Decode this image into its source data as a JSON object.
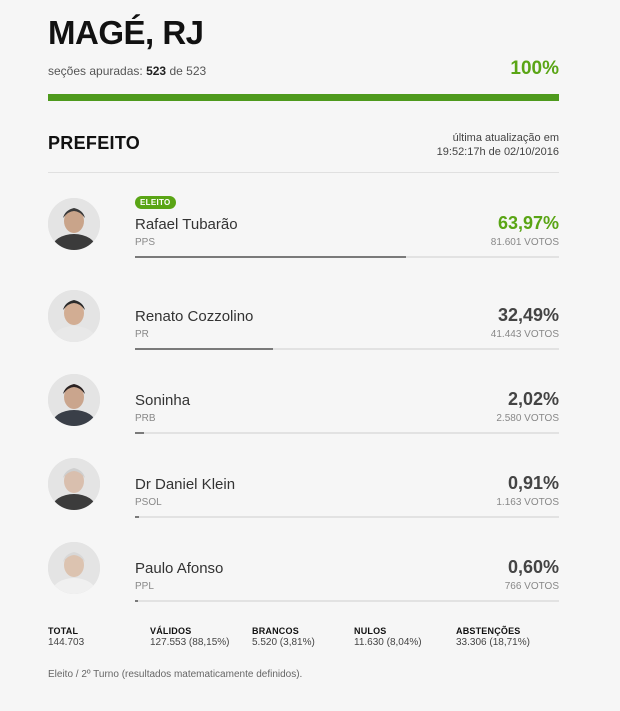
{
  "header": {
    "city": "MAGÉ, RJ",
    "sections_label": "seções apuradas:",
    "sections_counted": "523",
    "sections_of": "de",
    "sections_total": "523",
    "percent_counted": "100%",
    "progress_fraction": 1.0,
    "accent_color": "#5aa515"
  },
  "race": {
    "office": "PREFEITO",
    "updated_line1": "última atualização em",
    "updated_line2": "19:52:17h de 02/10/2016"
  },
  "candidates": [
    {
      "name": "Rafael Tubarão",
      "party": "PPS",
      "percent": "63,97%",
      "votes": "81.601 VOTOS",
      "share": 0.6397,
      "elected": true,
      "badge": "ELEITO",
      "avatar": "candidate-photo"
    },
    {
      "name": "Renato Cozzolino",
      "party": "PR",
      "percent": "32,49%",
      "votes": "41.443 VOTOS",
      "share": 0.3249,
      "elected": false,
      "avatar": "candidate-photo"
    },
    {
      "name": "Soninha",
      "party": "PRB",
      "percent": "2,02%",
      "votes": "2.580 VOTOS",
      "share": 0.0202,
      "elected": false,
      "avatar": "candidate-photo"
    },
    {
      "name": "Dr Daniel Klein",
      "party": "PSOL",
      "percent": "0,91%",
      "votes": "1.163 VOTOS",
      "share": 0.0091,
      "elected": false,
      "avatar": "candidate-photo"
    },
    {
      "name": "Paulo Afonso",
      "party": "PPL",
      "percent": "0,60%",
      "votes": "766 VOTOS",
      "share": 0.006,
      "elected": false,
      "avatar": "candidate-photo"
    }
  ],
  "totals": [
    {
      "label": "TOTAL",
      "value": "144.703"
    },
    {
      "label": "VÁLIDOS",
      "value": "127.553 (88,15%)"
    },
    {
      "label": "BRANCOS",
      "value": "5.520 (3,81%)"
    },
    {
      "label": "NULOS",
      "value": "11.630 (8,04%)"
    },
    {
      "label": "ABSTENÇÕES",
      "value": "33.306 (18,71%)"
    }
  ],
  "footnote": "Eleito / 2º Turno (resultados matematicamente definidos)."
}
